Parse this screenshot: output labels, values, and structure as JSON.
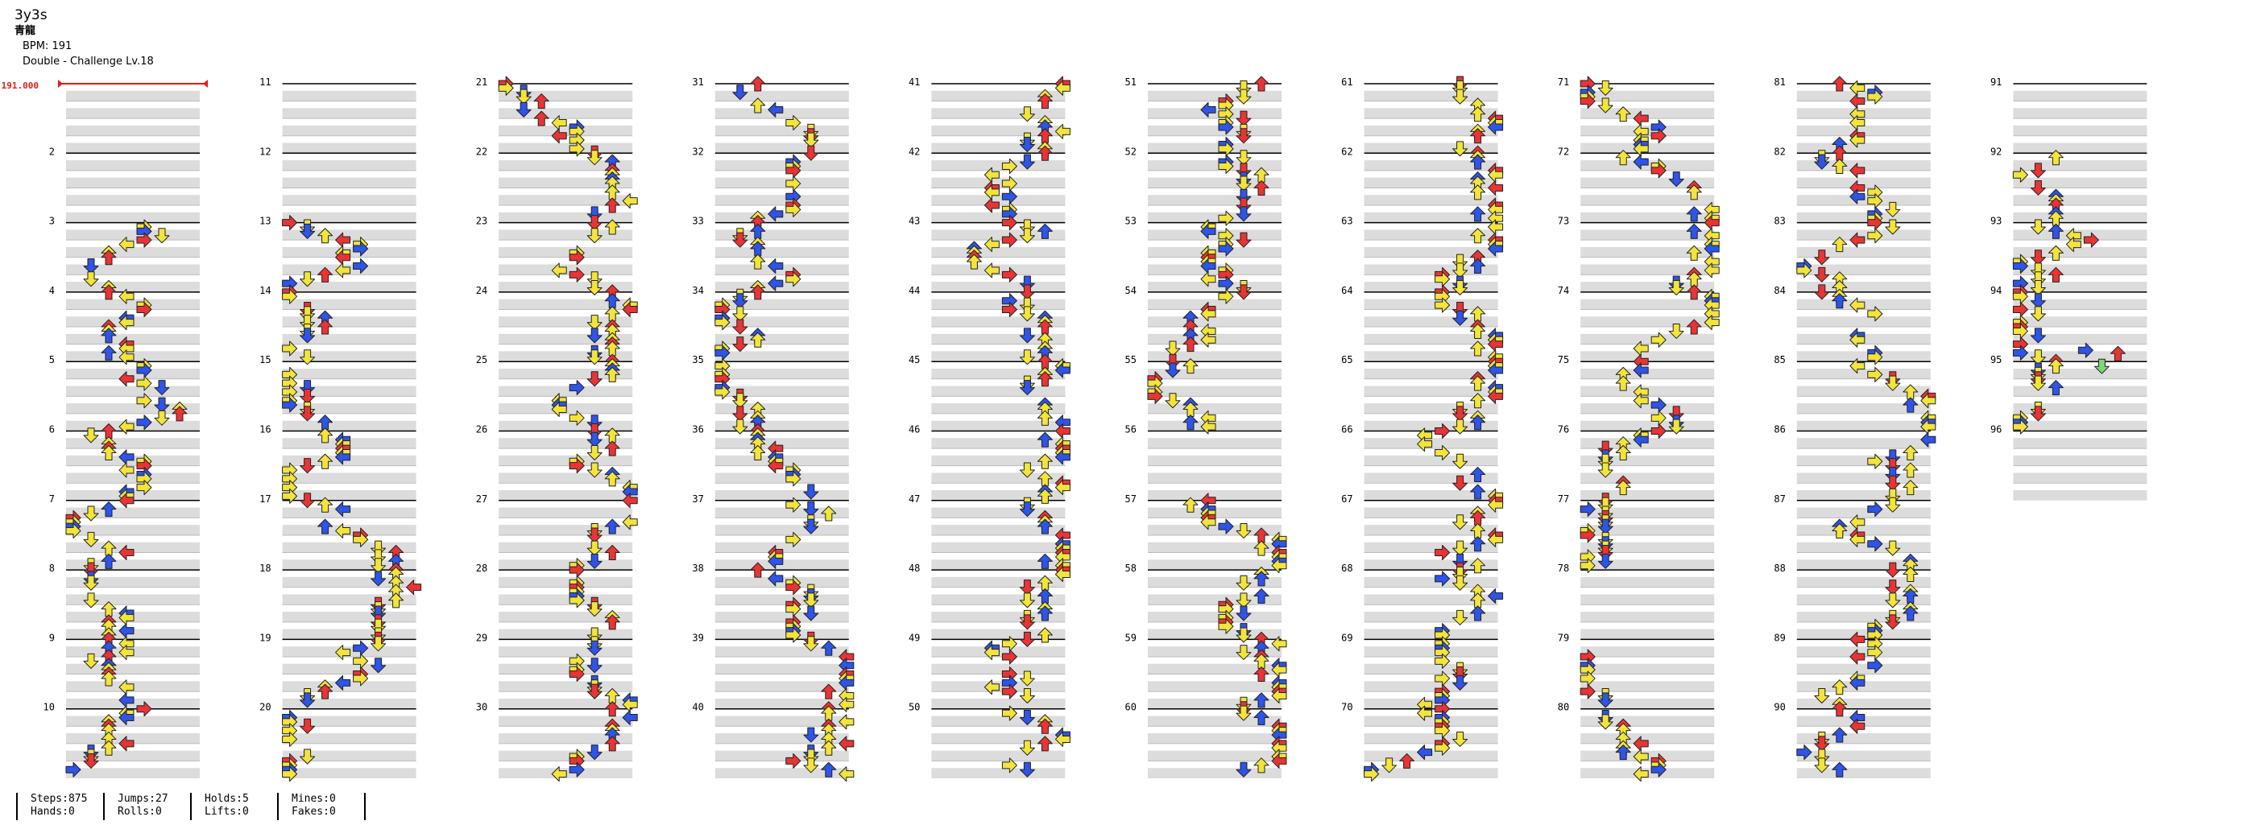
{
  "song": {
    "title": "3y3s",
    "artist": "青龍",
    "bpm_text": "BPM: 191",
    "difficulty_text": "Double - Challenge Lv.18"
  },
  "bpm_marker": "191.000",
  "measure_numbers": [
    "2",
    "3",
    "4",
    "5",
    "6",
    "7",
    "8",
    "9",
    "10",
    "11",
    "12",
    "13",
    "14",
    "15",
    "16",
    "17",
    "18",
    "19",
    "20",
    "21",
    "22",
    "23",
    "24",
    "25",
    "26",
    "27",
    "28",
    "29",
    "30",
    "31",
    "32",
    "33",
    "34",
    "35",
    "36",
    "37",
    "38",
    "39",
    "40",
    "41",
    "42",
    "43",
    "44",
    "45",
    "46",
    "47",
    "48",
    "49",
    "50",
    "51",
    "52",
    "53",
    "54",
    "55",
    "56",
    "57",
    "58",
    "59",
    "60",
    "61",
    "62",
    "63",
    "64",
    "65",
    "66",
    "67",
    "68",
    "69",
    "70",
    "71",
    "72",
    "73",
    "74",
    "75",
    "76",
    "77",
    "78",
    "79",
    "80",
    "81",
    "82",
    "83",
    "84",
    "85",
    "86",
    "87",
    "88",
    "89",
    "90",
    "91",
    "92",
    "93",
    "94",
    "95",
    "96"
  ],
  "total_measures": 96,
  "stats": {
    "steps": "Steps:875",
    "hands": "Hands:0",
    "jumps": "Jumps:27",
    "rolls": "Rolls:0",
    "holds": "Holds:5",
    "lifts": "Lifts:0",
    "mines": "Mines:0",
    "fakes": "Fakes:0"
  },
  "colors": {
    "quarter_note": "#e83434",
    "eighth_note": "#2e54e8",
    "sixteenth_note": "#f2e43a",
    "hold_end_note": "#7cd47c",
    "bpm_marker": "#e31b1b",
    "measure_stripe": "#dcdcdc"
  }
}
